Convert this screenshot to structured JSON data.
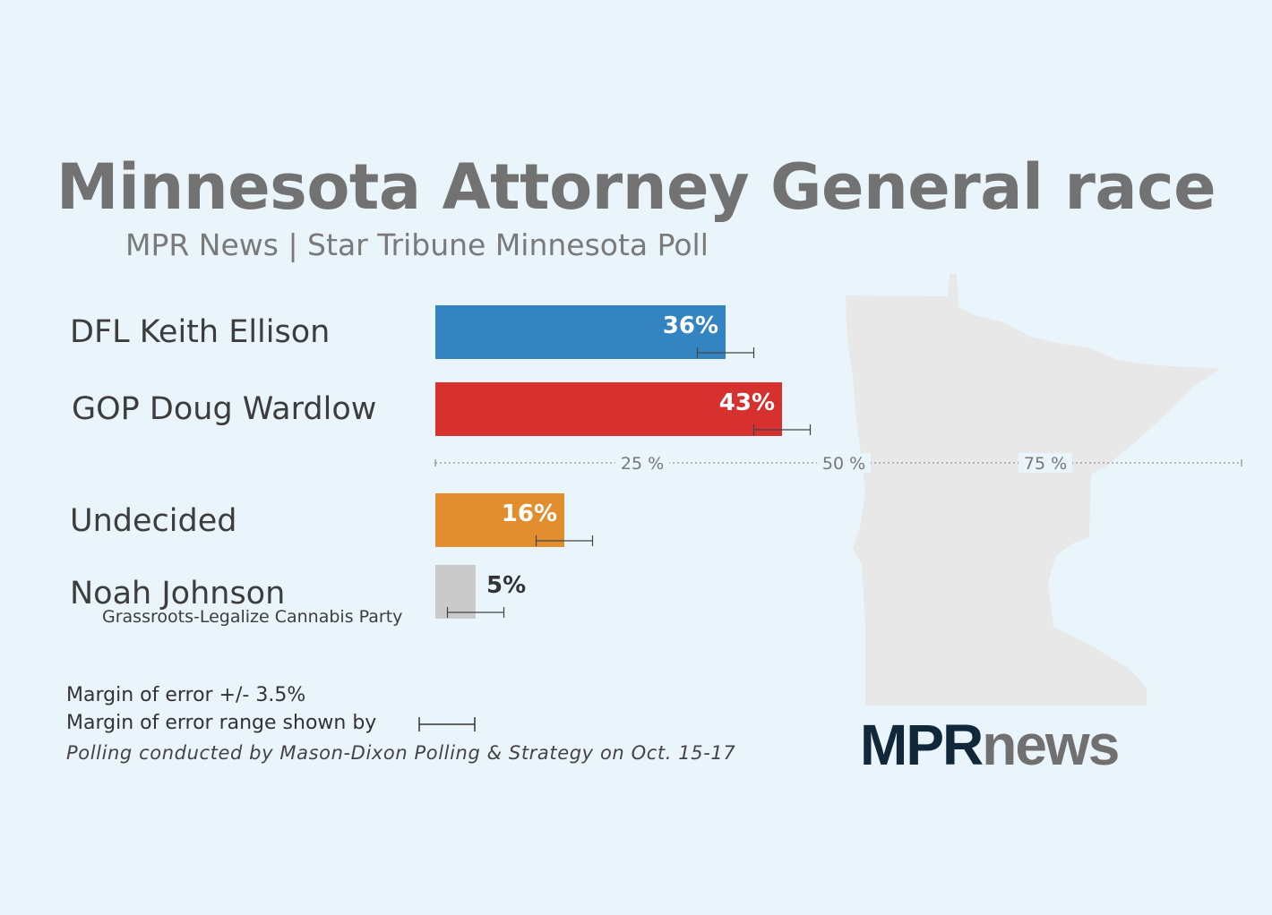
{
  "header": {
    "title": "Minnesota Attorney General race",
    "subtitle": "MPR News | Star Tribune Minnesota Poll"
  },
  "candidates": [
    {
      "label": "DFL Keith Ellison",
      "sublabel": ""
    },
    {
      "label": "GOP Doug Wardlow",
      "sublabel": ""
    },
    {
      "label": "Undecided",
      "sublabel": ""
    },
    {
      "label": "Noah Johnson",
      "sublabel": "Grassroots-Legalize Cannabis Party"
    }
  ],
  "notes": {
    "margin": "Margin of error +/- 3.5%",
    "range_shown": "Margin of error range shown by",
    "polling": "Polling conducted by Mason-Dixon Polling & Strategy on Oct. 15-17"
  },
  "logo": {
    "part1": "MPR",
    "part2": "news"
  },
  "colors": {
    "background": "#e9f5fb",
    "dfl": "#3584c2",
    "gop": "#d6302f",
    "undecided": "#e38e2e",
    "other": "#cacaca",
    "state_map": "#e8e8e8"
  },
  "chart_data": {
    "type": "bar",
    "orientation": "horizontal",
    "categories": [
      "DFL Keith Ellison",
      "GOP Doug Wardlow",
      "Undecided",
      "Noah Johnson"
    ],
    "values": [
      36,
      43,
      16,
      5
    ],
    "value_labels": [
      "36%",
      "43%",
      "16%",
      "5%"
    ],
    "error_margin": 3.5,
    "xlim": [
      0,
      100
    ],
    "ticks": [
      {
        "value": 25,
        "label": "25 %"
      },
      {
        "value": 50,
        "label": "50 %"
      },
      {
        "value": 75,
        "label": "75 %"
      }
    ],
    "grid": false
  }
}
